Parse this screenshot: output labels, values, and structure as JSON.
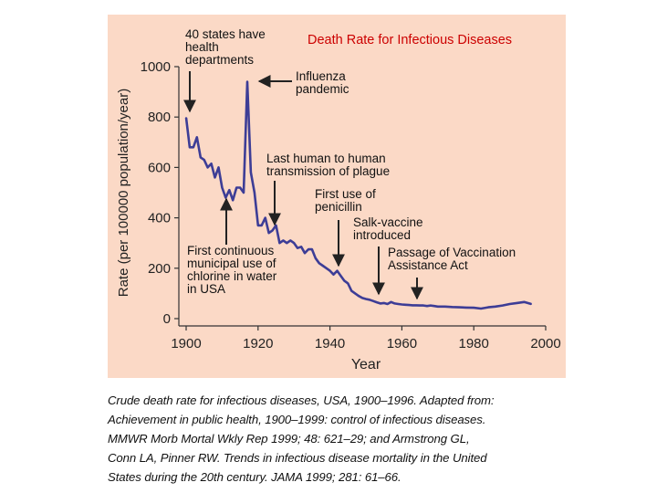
{
  "slide_title": "Death Rate for Infectious Diseases",
  "caption_lines": [
    "Crude death rate for infectious diseases, USA, 1900–1996. Adapted from:",
    "Achievement in public health, 1900–1999: control of infectious diseases.",
    "MMWR Morb Mortal Wkly Rep 1999; 48: 621–29; and Armstrong GL,",
    "Conn LA, Pinner RW. Trends in infectious disease mortality in the United",
    "States during the 20th century. JAMA 1999; 281: 61–66."
  ],
  "colors": {
    "line": "#3d3d96",
    "panel": "#fbd9c6",
    "title": "#cc0000",
    "axis": "#333333"
  },
  "chart_data": {
    "type": "line",
    "title": "",
    "xlabel": "Year",
    "ylabel": "Rate (per 100000 population/year)",
    "xlim": [
      1900,
      2000
    ],
    "ylim": [
      0,
      1000
    ],
    "xticks": [
      1900,
      1920,
      1940,
      1960,
      1980,
      2000
    ],
    "yticks": [
      0,
      200,
      400,
      600,
      800,
      1000
    ],
    "x": [
      1900,
      1901,
      1902,
      1903,
      1904,
      1905,
      1906,
      1907,
      1908,
      1909,
      1910,
      1911,
      1912,
      1913,
      1914,
      1915,
      1916,
      1917,
      1918,
      1919,
      1920,
      1921,
      1922,
      1923,
      1924,
      1925,
      1926,
      1927,
      1928,
      1929,
      1930,
      1931,
      1932,
      1933,
      1934,
      1935,
      1936,
      1937,
      1938,
      1939,
      1940,
      1941,
      1942,
      1943,
      1944,
      1945,
      1946,
      1947,
      1948,
      1949,
      1950,
      1951,
      1952,
      1953,
      1954,
      1955,
      1956,
      1957,
      1958,
      1959,
      1960,
      1961,
      1962,
      1963,
      1964,
      1965,
      1966,
      1967,
      1968,
      1969,
      1970,
      1972,
      1974,
      1976,
      1978,
      1980,
      1982,
      1984,
      1986,
      1988,
      1990,
      1992,
      1994,
      1996
    ],
    "values": [
      797,
      680,
      680,
      720,
      640,
      630,
      600,
      615,
      560,
      600,
      520,
      480,
      510,
      470,
      520,
      520,
      500,
      940,
      580,
      500,
      370,
      370,
      400,
      340,
      350,
      370,
      300,
      310,
      300,
      310,
      300,
      280,
      285,
      260,
      275,
      275,
      240,
      220,
      210,
      200,
      190,
      175,
      190,
      170,
      150,
      140,
      110,
      100,
      90,
      82,
      78,
      75,
      70,
      65,
      60,
      62,
      58,
      66,
      60,
      58,
      56,
      55,
      54,
      53,
      53,
      52,
      52,
      50,
      52,
      50,
      48,
      48,
      46,
      45,
      44,
      43,
      40,
      45,
      48,
      52,
      58,
      62,
      66,
      58
    ],
    "annotations": [
      {
        "lines": [
          "40 states have",
          "health",
          "departments"
        ],
        "year": 1900
      },
      {
        "lines": [
          "Influenza",
          "pandemic"
        ],
        "year": 1918
      },
      {
        "lines": [
          "Last human to human",
          "transmission of plague"
        ],
        "year": 1924
      },
      {
        "lines": [
          "First use of",
          "penicillin"
        ],
        "year": 1942
      },
      {
        "lines": [
          "Salk-vaccine",
          "introduced"
        ],
        "year": 1955
      },
      {
        "lines": [
          "Passage of Vaccination",
          "Assistance Act"
        ],
        "year": 1962
      },
      {
        "lines": [
          "First continuous",
          "municipal use of",
          "chlorine in water",
          "in USA"
        ],
        "year": 1908
      }
    ]
  }
}
